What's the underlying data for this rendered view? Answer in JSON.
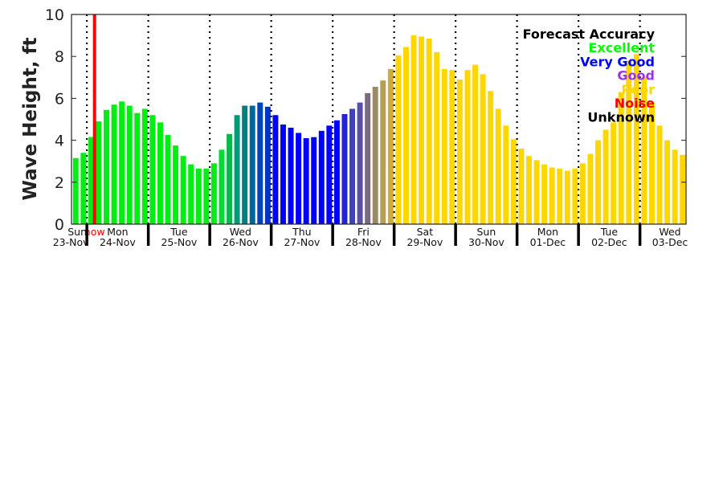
{
  "chart_data": {
    "type": "bar",
    "title": "",
    "xlabel": "",
    "ylabel": "Wave Height, ft",
    "ylim": [
      0,
      10
    ],
    "yticks": [
      "0",
      "2",
      "4",
      "6",
      "8",
      "10"
    ],
    "bars_per_day": 8,
    "days": [
      {
        "dow": "Sun",
        "date": "23-Nov"
      },
      {
        "dow": "Mon",
        "date": "24-Nov"
      },
      {
        "dow": "Tue",
        "date": "25-Nov"
      },
      {
        "dow": "Wed",
        "date": "26-Nov"
      },
      {
        "dow": "Thu",
        "date": "27-Nov"
      },
      {
        "dow": "Fri",
        "date": "28-Nov"
      },
      {
        "dow": "Sat",
        "date": "29-Nov"
      },
      {
        "dow": "Sun",
        "date": "30-Nov"
      },
      {
        "dow": "Mon",
        "date": "01-Dec"
      },
      {
        "dow": "Tue",
        "date": "02-Dec"
      },
      {
        "dow": "Wed",
        "date": "03-Dec"
      }
    ],
    "now_label": "now",
    "now_position_bars": 3.0,
    "values": [
      3.15,
      3.4,
      4.15,
      4.9,
      5.45,
      5.7,
      5.85,
      5.65,
      5.3,
      5.5,
      5.2,
      4.85,
      4.25,
      3.75,
      3.25,
      2.85,
      2.65,
      2.65,
      2.9,
      3.55,
      4.3,
      5.2,
      5.65,
      5.65,
      5.8,
      5.6,
      5.2,
      4.75,
      4.6,
      4.35,
      4.1,
      4.15,
      4.45,
      4.7,
      4.95,
      5.25,
      5.5,
      5.8,
      6.25,
      6.55,
      6.85,
      7.4,
      8.05,
      8.45,
      9.0,
      8.95,
      8.85,
      8.2,
      7.4,
      7.35,
      6.9,
      7.35,
      7.6,
      7.15,
      6.35,
      5.5,
      4.7,
      4.05,
      3.6,
      3.25,
      3.05,
      2.85,
      2.7,
      2.65,
      2.55,
      2.65,
      2.9,
      3.35,
      4.0,
      4.5,
      4.85,
      6.3,
      7.8,
      8.1,
      7.0,
      5.8,
      4.7,
      4.0,
      3.55,
      3.3
    ],
    "colors": [
      "#00ee11",
      "#00ee11",
      "#00ee11",
      "#00ee11",
      "#00ee11",
      "#00ee11",
      "#00ee11",
      "#00ee11",
      "#00ee11",
      "#00ee11",
      "#00ee11",
      "#00ee11",
      "#00ee11",
      "#00ee11",
      "#00ee11",
      "#00ee11",
      "#00ee11",
      "#00ee11",
      "#00ee11",
      "#00dd33",
      "#00bb44",
      "#00997a",
      "#007f7f",
      "#006699",
      "#0044bb",
      "#0033cc",
      "#0000ff",
      "#0000ff",
      "#0000ff",
      "#0000ff",
      "#0000ff",
      "#0000ff",
      "#0000ff",
      "#0000ff",
      "#0000ff",
      "#2222dd",
      "#4040c0",
      "#5a50a8",
      "#7a6a80",
      "#9a8a66",
      "#b89e50",
      "#d0ad3a",
      "#ffd700",
      "#ffd700",
      "#ffd700",
      "#ffd700",
      "#ffd700",
      "#ffd700",
      "#ffd700",
      "#ffd700",
      "#ffd700",
      "#ffd700",
      "#ffd700",
      "#ffd700",
      "#ffd700",
      "#ffd700",
      "#ffd700",
      "#ffd700",
      "#ffd700",
      "#ffd700",
      "#ffd700",
      "#ffd700",
      "#ffd700",
      "#ffd700",
      "#ffd700",
      "#ffd700",
      "#ffd700",
      "#ffd700",
      "#ffd700",
      "#ffd700",
      "#ffd700",
      "#ffd700",
      "#ffd700",
      "#ffd700",
      "#ffd700",
      "#ffd700",
      "#ffd700",
      "#ffd700",
      "#ffd700",
      "#ffd700"
    ],
    "legend": {
      "title": "Forecast Accuracy",
      "placement": "top-right",
      "entries": [
        {
          "label": "Excellent",
          "color": "#00ff00"
        },
        {
          "label": "Very Good",
          "color": "#0000ff"
        },
        {
          "label": "Good",
          "color": "#9b30ff"
        },
        {
          "label": "Poor",
          "color": "#ffd700"
        },
        {
          "label": "Noise",
          "color": "#ff0000"
        },
        {
          "label": "Unknown",
          "color": "#000000"
        }
      ]
    }
  }
}
